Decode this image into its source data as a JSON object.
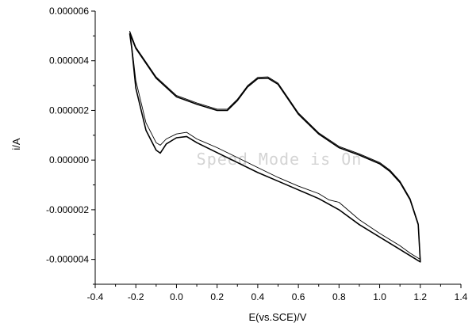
{
  "chart_data": {
    "type": "line",
    "xlabel": "E(vs.SCE)/V",
    "ylabel": "i/A",
    "xlim": [
      -0.4,
      1.4
    ],
    "ylim": [
      -5e-06,
      6e-06
    ],
    "x_ticks": [
      -0.4,
      -0.2,
      0.0,
      0.2,
      0.4,
      0.6,
      0.8,
      1.0,
      1.2,
      1.4
    ],
    "x_tick_labels": [
      "-0.4",
      "-0.2",
      "0.0",
      "0.2",
      "0.4",
      "0.6",
      "0.8",
      "1.0",
      "1.2",
      "1.4"
    ],
    "y_ticks": [
      -4e-06,
      -2e-06,
      0.0,
      2e-06,
      4e-06,
      6e-06
    ],
    "y_tick_labels": [
      "-0.000004",
      "-0.000002",
      "0.000000",
      "0.000002",
      "0.000004",
      "0.000006"
    ],
    "grid": false,
    "watermark": "Speed Mode is On",
    "series": [
      {
        "stroke_width": 1.6,
        "x": [
          -0.23,
          -0.2,
          -0.1,
          0.0,
          0.1,
          0.2,
          0.25,
          0.3,
          0.35,
          0.4,
          0.45,
          0.5,
          0.55,
          0.6,
          0.7,
          0.8,
          0.9,
          1.0,
          1.05,
          1.1,
          1.15,
          1.19,
          1.2,
          1.15,
          1.1,
          1.0,
          0.9,
          0.8,
          0.7,
          0.6,
          0.5,
          0.4,
          0.3,
          0.2,
          0.1,
          0.05,
          0.0,
          -0.05,
          -0.08,
          -0.1,
          -0.15,
          -0.2,
          -0.22,
          -0.23
        ],
        "y": [
          5.1e-06,
          4.5e-06,
          3.3e-06,
          2.55e-06,
          2.25e-06,
          2e-06,
          2e-06,
          2.4e-06,
          2.95e-06,
          3.28e-06,
          3.3e-06,
          3.05e-06,
          2.45e-06,
          1.85e-06,
          1.05e-06,
          5e-07,
          2e-07,
          -1.5e-07,
          -4.5e-07,
          -9e-07,
          -1.6e-06,
          -2.6e-06,
          -4.1e-06,
          -3.85e-06,
          -3.6e-06,
          -3.1e-06,
          -2.6e-06,
          -2e-06,
          -1.55e-06,
          -1.2e-06,
          -8.5e-07,
          -5e-07,
          -1e-07,
          3e-07,
          7e-07,
          9.5e-07,
          9e-07,
          6.5e-07,
          2.8e-07,
          4e-07,
          1.2e-06,
          2.9e-06,
          4.5e-06,
          5.1e-06
        ]
      },
      {
        "stroke_width": 0.9,
        "x": [
          -0.23,
          -0.2,
          -0.1,
          0.0,
          0.1,
          0.2,
          0.25,
          0.3,
          0.35,
          0.4,
          0.45,
          0.5,
          0.55,
          0.6,
          0.7,
          0.8,
          0.9,
          1.0,
          1.05,
          1.1,
          1.15,
          1.19,
          1.2,
          1.15,
          1.1,
          1.0,
          0.9,
          0.8,
          0.75,
          0.7,
          0.6,
          0.5,
          0.4,
          0.3,
          0.2,
          0.1,
          0.05,
          0.0,
          -0.05,
          -0.08,
          -0.1,
          -0.15,
          -0.2,
          -0.22,
          -0.23
        ],
        "y": [
          5.2e-06,
          4.55e-06,
          3.35e-06,
          2.6e-06,
          2.3e-06,
          2.05e-06,
          2.05e-06,
          2.45e-06,
          3e-06,
          3.33e-06,
          3.35e-06,
          3.1e-06,
          2.5e-06,
          1.9e-06,
          1.1e-06,
          5.5e-07,
          2.5e-07,
          -1e-07,
          -4e-07,
          -8.5e-07,
          -1.55e-06,
          -2.55e-06,
          -4e-06,
          -3.75e-06,
          -3.45e-06,
          -2.95e-06,
          -2.4e-06,
          -1.7e-06,
          -1.6e-06,
          -1.35e-06,
          -1.05e-06,
          -7e-07,
          -3e-07,
          1e-07,
          5e-07,
          8.5e-07,
          1.12e-06,
          1.05e-06,
          8.5e-07,
          6e-07,
          7e-07,
          1.5e-06,
          3.2e-06,
          4.6e-06,
          5.2e-06
        ]
      }
    ]
  }
}
